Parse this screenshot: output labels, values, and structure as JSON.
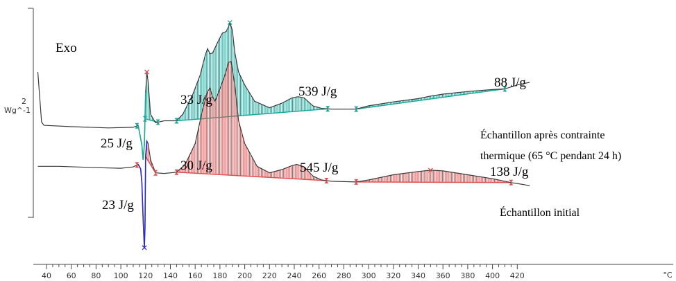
{
  "chart_data": {
    "type": "line",
    "title": "",
    "xlabel": "°C",
    "ylabel_value": "2",
    "ylabel_unit": "Wg^-1",
    "exo_label": "Exo",
    "xlim": [
      33,
      430
    ],
    "x_ticks": [
      "40",
      "60",
      "80",
      "100",
      "120",
      "140",
      "160",
      "180",
      "200",
      "220",
      "240",
      "260",
      "280",
      "300",
      "320",
      "340",
      "360",
      "380",
      "400",
      "420"
    ],
    "grid": false,
    "colors": {
      "curve": "#3a3a3a",
      "top_fill": "#1aa89a",
      "bottom_fill": "#e05050",
      "blue": "#2a2ac8"
    },
    "series": [
      {
        "name": "Échantillon après contrainte thermique (65 °C pendant 24 h)",
        "points": [
          [
            33,
            0.0
          ],
          [
            36,
            -7.7
          ],
          [
            38,
            -8.2
          ],
          [
            60,
            -8.4
          ],
          [
            90,
            -8.6
          ],
          [
            110,
            -8.5
          ],
          [
            114,
            -8.2
          ],
          [
            117,
            -11.2
          ],
          [
            118,
            -13.5
          ],
          [
            119,
            -11.2
          ],
          [
            120,
            -3.2
          ],
          [
            121,
            0.0
          ],
          [
            122,
            -1.5
          ],
          [
            124,
            -6.5
          ],
          [
            128,
            -7.8
          ],
          [
            135,
            -7.5
          ],
          [
            145,
            -7.5
          ],
          [
            150,
            -6.5
          ],
          [
            158,
            -3.5
          ],
          [
            164,
            -0.5
          ],
          [
            168,
            2.5
          ],
          [
            170,
            3.6
          ],
          [
            172,
            2.8
          ],
          [
            174,
            2.9
          ],
          [
            178,
            4.5
          ],
          [
            182,
            6.0
          ],
          [
            185,
            6.2
          ],
          [
            187,
            7.0
          ],
          [
            188,
            7.6
          ],
          [
            190,
            6.4
          ],
          [
            192,
            3.0
          ],
          [
            195,
            0.0
          ],
          [
            200,
            -2.0
          ],
          [
            208,
            -4.5
          ],
          [
            220,
            -5.5
          ],
          [
            230,
            -4.8
          ],
          [
            238,
            -4.0
          ],
          [
            243,
            -3.8
          ],
          [
            248,
            -4.0
          ],
          [
            255,
            -5.2
          ],
          [
            262,
            -5.6
          ],
          [
            270,
            -5.7
          ],
          [
            290,
            -5.7
          ],
          [
            300,
            -5.2
          ],
          [
            320,
            -4.6
          ],
          [
            340,
            -4.1
          ],
          [
            350,
            -3.7
          ],
          [
            360,
            -3.4
          ],
          [
            380,
            -3.0
          ],
          [
            400,
            -2.7
          ],
          [
            410,
            -2.6
          ],
          [
            420,
            -2.0
          ],
          [
            430,
            -1.6
          ]
        ]
      },
      {
        "name": "Échantillon initial",
        "points": [
          [
            33,
            -14.5
          ],
          [
            50,
            -14.5
          ],
          [
            80,
            -14.7
          ],
          [
            100,
            -14.8
          ],
          [
            110,
            -14.6
          ],
          [
            114,
            -14.2
          ],
          [
            116,
            -14.9
          ],
          [
            117,
            -17.0
          ],
          [
            118,
            -22.5
          ],
          [
            119,
            -27.0
          ],
          [
            119.5,
            -24.0
          ],
          [
            120,
            -13.0
          ],
          [
            121,
            -10.6
          ],
          [
            122,
            -11.0
          ],
          [
            124,
            -13.5
          ],
          [
            128,
            -15.5
          ],
          [
            135,
            -15.6
          ],
          [
            145,
            -15.4
          ],
          [
            152,
            -14.2
          ],
          [
            160,
            -11.0
          ],
          [
            166,
            -5.8
          ],
          [
            170,
            -3.0
          ],
          [
            172,
            -2.5
          ],
          [
            174,
            -3.8
          ],
          [
            176,
            -4.5
          ],
          [
            180,
            -2.6
          ],
          [
            184,
            -0.5
          ],
          [
            187,
            1.5
          ],
          [
            189,
            1.6
          ],
          [
            192,
            -2.0
          ],
          [
            195,
            -7.5
          ],
          [
            200,
            -11.0
          ],
          [
            210,
            -14.5
          ],
          [
            220,
            -15.5
          ],
          [
            230,
            -15.0
          ],
          [
            238,
            -14.4
          ],
          [
            242,
            -14.2
          ],
          [
            248,
            -14.6
          ],
          [
            255,
            -16.0
          ],
          [
            262,
            -16.6
          ],
          [
            270,
            -16.8
          ],
          [
            290,
            -16.9
          ],
          [
            300,
            -16.6
          ],
          [
            320,
            -15.8
          ],
          [
            340,
            -15.3
          ],
          [
            350,
            -15.1
          ],
          [
            360,
            -15.2
          ],
          [
            380,
            -15.8
          ],
          [
            400,
            -16.4
          ],
          [
            415,
            -17.0
          ],
          [
            425,
            -17.3
          ],
          [
            430,
            -17.5
          ]
        ]
      }
    ],
    "annotations": {
      "a33": "33 J/g",
      "a539": "539 J/g",
      "a88": "88 J/g",
      "a25": "25 J/g",
      "a30": "30 J/g",
      "a545": "545 J/g",
      "a138": "138 J/g",
      "a23": "23 J/g",
      "top_line1": "Échantillon après contrainte",
      "top_line2": "thermique (65 °C pendant 24 h)",
      "bottom_label": "Échantillon initial"
    }
  }
}
